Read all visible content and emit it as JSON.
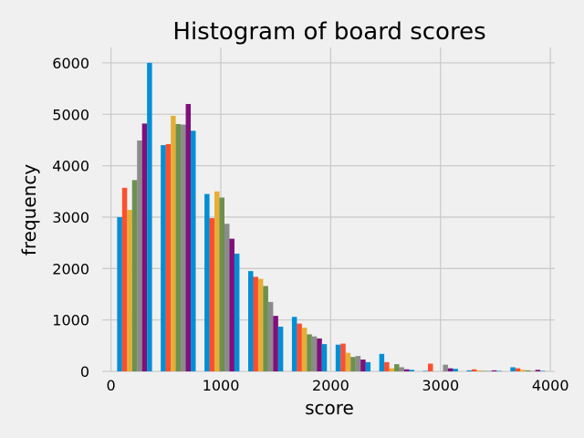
{
  "chart_data": {
    "type": "bar",
    "title": "Histogram of board scores",
    "xlabel": "score",
    "ylabel": "frequency",
    "xlim": [
      -80,
      4040
    ],
    "ylim": [
      0,
      6300
    ],
    "grid": true,
    "xticks": [
      0,
      1000,
      2000,
      3000,
      4000
    ],
    "yticks": [
      0,
      1000,
      2000,
      3000,
      4000,
      5000,
      6000
    ],
    "bin_edges": [
      56,
      453,
      851,
      1249,
      1647,
      2045,
      2442,
      2840,
      3238,
      3636,
      4033
    ],
    "series": [
      {
        "color": "#008fd5",
        "values": [
          3000,
          4400,
          3450,
          1950,
          1060,
          520,
          340,
          10,
          20,
          80
        ]
      },
      {
        "color": "#fc4f30",
        "values": [
          3570,
          4420,
          2980,
          1840,
          930,
          540,
          180,
          150,
          40,
          60
        ]
      },
      {
        "color": "#e5ae38",
        "values": [
          3140,
          4970,
          3500,
          1800,
          850,
          360,
          60,
          0,
          20,
          30
        ]
      },
      {
        "color": "#6d904f",
        "values": [
          3720,
          4810,
          3380,
          1660,
          720,
          280,
          140,
          0,
          10,
          20
        ]
      },
      {
        "color": "#8b8b8b",
        "values": [
          4490,
          4800,
          2870,
          1350,
          680,
          300,
          80,
          130,
          10,
          10
        ]
      },
      {
        "color": "#810f7c",
        "values": [
          4820,
          5200,
          2580,
          1080,
          640,
          230,
          40,
          60,
          20,
          30
        ]
      },
      {
        "color": "#008fd5",
        "values": [
          6000,
          4680,
          2290,
          870,
          530,
          180,
          30,
          50,
          10,
          10
        ]
      }
    ]
  },
  "colors": {
    "background": "#f0f0f0",
    "grid": "#cbcbcb"
  }
}
